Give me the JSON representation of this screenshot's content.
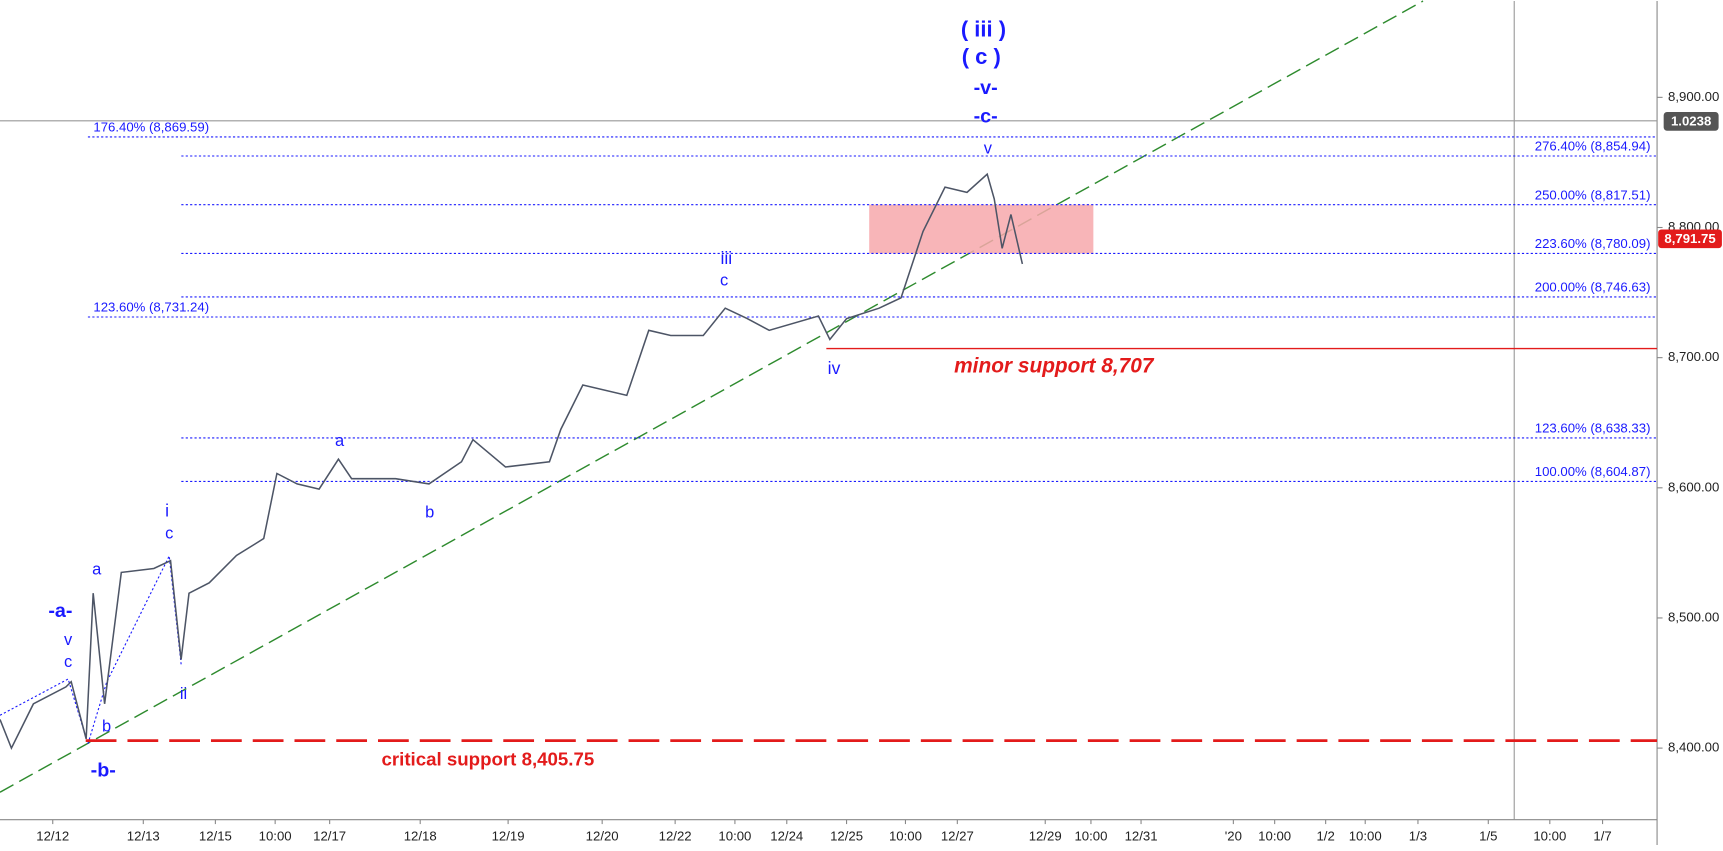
{
  "chart_data": {
    "type": "line",
    "x": [
      0,
      1.3,
      3.8,
      7.5,
      8.1,
      9.8,
      10.6,
      11.9,
      13.8,
      17.5,
      19.4,
      20.6,
      21.5,
      23.8,
      26.9,
      30,
      31.5,
      33.8,
      36.3,
      38.5,
      40,
      45,
      48.8,
      52.5,
      53.8,
      57.5,
      62.5,
      63.8,
      66.3,
      71.3,
      73.8,
      76.3,
      80,
      82.5,
      85,
      87.5,
      93.1,
      94.4,
      96.3,
      100,
      102.5,
      105,
      107.5,
      110,
      112.3,
      113.1,
      114,
      115,
      116.3
    ],
    "series": [
      {
        "name": "price",
        "color": "#4d5566",
        "values": [
          8422,
          8400,
          8434,
          8447,
          8451,
          8407,
          8519,
          8434,
          8535,
          8538,
          8544,
          8468,
          8519,
          8527,
          8548,
          8561,
          8611,
          8603,
          8599,
          8622,
          8607,
          8607,
          8603,
          8620,
          8637,
          8616,
          8620,
          8645,
          8679,
          8671,
          8721,
          8717,
          8717,
          8738,
          8730,
          8721,
          8732,
          8714,
          8730,
          8738,
          8746,
          8797,
          8831,
          8827,
          8841,
          8822,
          8784,
          8810,
          8772
        ]
      }
    ],
    "xlim": [
      0,
      188.5
    ],
    "xticks": [
      {
        "value": 6,
        "label": "12/12"
      },
      {
        "value": 16.3,
        "label": "12/13"
      },
      {
        "value": 24.5,
        "label": "12/15"
      },
      {
        "value": 31.3,
        "label": "10:00"
      },
      {
        "value": 37.5,
        "label": "12/17"
      },
      {
        "value": 47.8,
        "label": "12/18"
      },
      {
        "value": 57.8,
        "label": "12/19"
      },
      {
        "value": 68.5,
        "label": "12/20"
      },
      {
        "value": 76.8,
        "label": "12/22"
      },
      {
        "value": 83.6,
        "label": "10:00"
      },
      {
        "value": 89.5,
        "label": "12/24"
      },
      {
        "value": 96.3,
        "label": "12/25"
      },
      {
        "value": 103,
        "label": "10:00"
      },
      {
        "value": 108.9,
        "label": "12/27"
      },
      {
        "value": 118.9,
        "label": "12/29"
      },
      {
        "value": 124.1,
        "label": "10:00"
      },
      {
        "value": 129.8,
        "label": "12/31"
      },
      {
        "value": 140.3,
        "label": "'20"
      },
      {
        "value": 145,
        "label": "10:00"
      },
      {
        "value": 150.8,
        "label": "1/2"
      },
      {
        "value": 155.3,
        "label": "10:00"
      },
      {
        "value": 161.3,
        "label": "1/3"
      },
      {
        "value": 169.3,
        "label": "1/5"
      },
      {
        "value": 176.3,
        "label": "10:00"
      },
      {
        "value": 182.3,
        "label": "1/7"
      }
    ],
    "ylim": [
      8345,
      8974
    ],
    "yticks": [
      {
        "value": 8400,
        "label": "8,400.00"
      },
      {
        "value": 8500,
        "label": "8,500.00"
      },
      {
        "value": 8600,
        "label": "8,600.00"
      },
      {
        "value": 8700,
        "label": "8,700.00"
      },
      {
        "value": 8800,
        "label": "8,800.00"
      },
      {
        "value": 8900,
        "label": "8,900.00"
      }
    ],
    "fib_levels": [
      {
        "label": "176.40% (8,869.59)",
        "value": 8869.59,
        "side": "left"
      },
      {
        "label": "276.40% (8,854.94)",
        "value": 8854.94,
        "side": "right"
      },
      {
        "label": "250.00% (8,817.51)",
        "value": 8817.51,
        "side": "right"
      },
      {
        "label": "223.60% (8,780.09)",
        "value": 8780.09,
        "side": "right"
      },
      {
        "label": "200.00% (8,746.63)",
        "value": 8746.63,
        "side": "right"
      },
      {
        "label": "123.60% (8,731.24)",
        "value": 8731.24,
        "side": "left"
      },
      {
        "label": "123.60% (8,638.33)",
        "value": 8638.33,
        "side": "right"
      },
      {
        "label": "100.00% (8,604.87)",
        "value": 8604.87,
        "side": "right"
      }
    ],
    "supports": [
      {
        "label": "minor support 8,707",
        "value": 8707,
        "style": "solid"
      },
      {
        "label": "critical support 8,405.75",
        "value": 8405.75,
        "style": "dashed"
      }
    ],
    "last_price": {
      "value": 8791.75,
      "label": "8,791.75"
    },
    "crosshair_label": "1.0238",
    "wave_labels": [
      "( iii )",
      "( c )",
      "-v-",
      "-c-",
      "v",
      "iii",
      "c",
      "iv",
      "a",
      "b",
      "i",
      "c",
      "ii",
      "-a-",
      "v",
      "c",
      "a",
      "b",
      "-b-"
    ]
  }
}
